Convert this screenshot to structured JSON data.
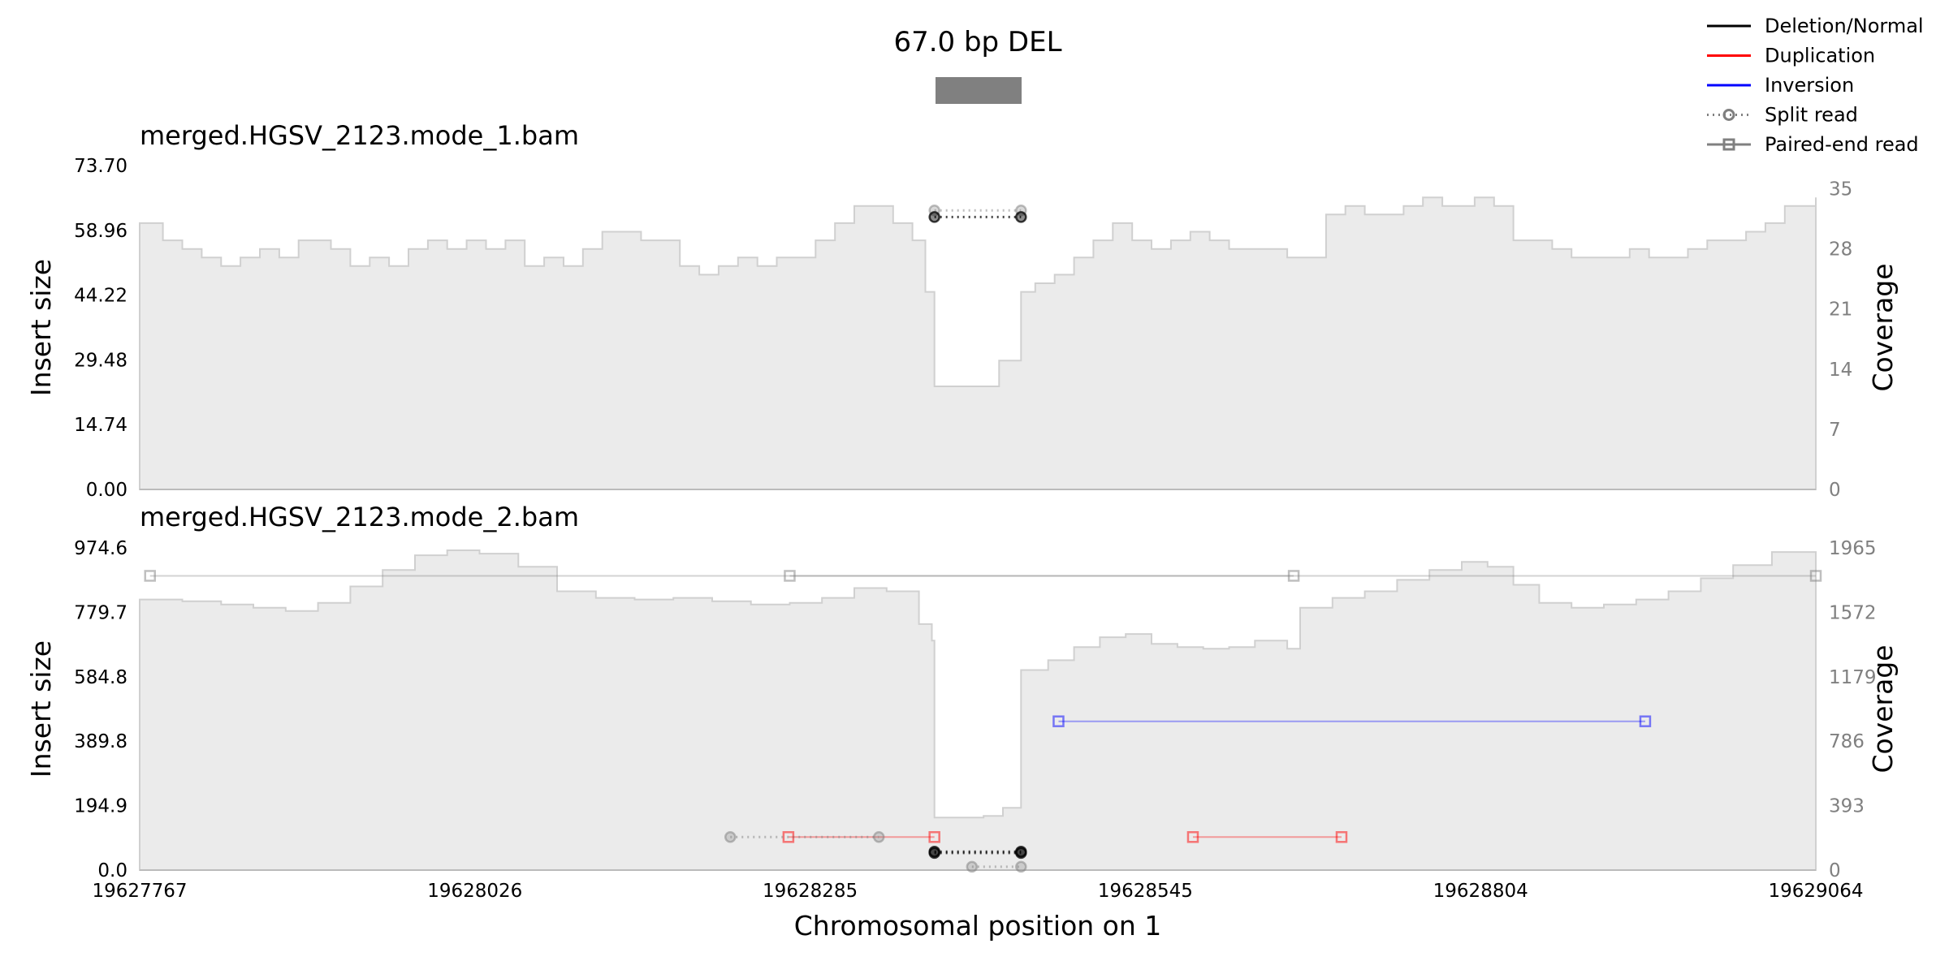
{
  "title": "67.0 bp DEL",
  "xlabel": "Chromosomal position on 1",
  "x_ticks": [
    "19627767",
    "19628026",
    "19628285",
    "19628545",
    "19628804",
    "19629064"
  ],
  "legend": [
    {
      "label": "Deletion/Normal",
      "color": "#000000",
      "style": "line"
    },
    {
      "label": "Duplication",
      "color": "#ff0000",
      "style": "line"
    },
    {
      "label": "Inversion",
      "color": "#0000ff",
      "style": "line"
    },
    {
      "label": "Split read",
      "color": "#808080",
      "style": "split"
    },
    {
      "label": "Paired-end read",
      "color": "#808080",
      "style": "paired"
    }
  ],
  "colors": {
    "coverage_fill": "#ebebeb",
    "coverage_line": "#d0d0d0",
    "deletion": "#000000",
    "duplication": "#ff0000",
    "inversion": "#0000ff",
    "neutral": "#808080",
    "sv_box": "#808080"
  },
  "chart_data": {
    "type": "area",
    "xlim": [
      19627767,
      19629064
    ],
    "variant": {
      "type": "DEL",
      "start": 19628382,
      "end": 19628449
    },
    "panels": [
      {
        "title": "merged.HGSV_2123.mode_1.bam",
        "ylabel": "Insert size",
        "y2label": "Coverage",
        "ylim": [
          0,
          73.7
        ],
        "yticks": [
          "73.70",
          "58.96",
          "44.22",
          "29.48",
          "14.74",
          "0.00"
        ],
        "y2lim": [
          0,
          37.7
        ],
        "y2ticks": [
          "35",
          "28",
          "21",
          "14",
          "7",
          "0"
        ],
        "coverage": [
          [
            19627767,
            31
          ],
          [
            19627785,
            29
          ],
          [
            19627800,
            28
          ],
          [
            19627815,
            27
          ],
          [
            19627830,
            26
          ],
          [
            19627845,
            27
          ],
          [
            19627860,
            28
          ],
          [
            19627875,
            27
          ],
          [
            19627890,
            29
          ],
          [
            19627900,
            29
          ],
          [
            19627915,
            28
          ],
          [
            19627930,
            26
          ],
          [
            19627945,
            27
          ],
          [
            19627960,
            26
          ],
          [
            19627975,
            28
          ],
          [
            19627990,
            29
          ],
          [
            19628005,
            28
          ],
          [
            19628020,
            29
          ],
          [
            19628035,
            28
          ],
          [
            19628050,
            29
          ],
          [
            19628065,
            26
          ],
          [
            19628080,
            27
          ],
          [
            19628095,
            26
          ],
          [
            19628110,
            28
          ],
          [
            19628125,
            30
          ],
          [
            19628140,
            30
          ],
          [
            19628155,
            29
          ],
          [
            19628170,
            29
          ],
          [
            19628185,
            26
          ],
          [
            19628200,
            25
          ],
          [
            19628215,
            26
          ],
          [
            19628230,
            27
          ],
          [
            19628245,
            26
          ],
          [
            19628260,
            27
          ],
          [
            19628275,
            27
          ],
          [
            19628290,
            29
          ],
          [
            19628305,
            31
          ],
          [
            19628320,
            33
          ],
          [
            19628335,
            33
          ],
          [
            19628350,
            31
          ],
          [
            19628365,
            29
          ],
          [
            19628375,
            23
          ],
          [
            19628382,
            12
          ],
          [
            19628395,
            12
          ],
          [
            19628405,
            12
          ],
          [
            19628420,
            12
          ],
          [
            19628432,
            15
          ],
          [
            19628449,
            23
          ],
          [
            19628460,
            24
          ],
          [
            19628475,
            25
          ],
          [
            19628490,
            27
          ],
          [
            19628505,
            29
          ],
          [
            19628520,
            31
          ],
          [
            19628535,
            29
          ],
          [
            19628550,
            28
          ],
          [
            19628565,
            29
          ],
          [
            19628580,
            30
          ],
          [
            19628595,
            29
          ],
          [
            19628610,
            28
          ],
          [
            19628625,
            28
          ],
          [
            19628640,
            28
          ],
          [
            19628655,
            27
          ],
          [
            19628670,
            27
          ],
          [
            19628685,
            32
          ],
          [
            19628700,
            33
          ],
          [
            19628715,
            32
          ],
          [
            19628730,
            32
          ],
          [
            19628745,
            33
          ],
          [
            19628760,
            34
          ],
          [
            19628775,
            33
          ],
          [
            19628790,
            33
          ],
          [
            19628800,
            34
          ],
          [
            19628815,
            33
          ],
          [
            19628830,
            29
          ],
          [
            19628845,
            29
          ],
          [
            19628860,
            28
          ],
          [
            19628875,
            27
          ],
          [
            19628890,
            27
          ],
          [
            19628905,
            27
          ],
          [
            19628920,
            28
          ],
          [
            19628935,
            27
          ],
          [
            19628950,
            27
          ],
          [
            19628965,
            28
          ],
          [
            19628980,
            29
          ],
          [
            19628995,
            29
          ],
          [
            19629010,
            30
          ],
          [
            19629025,
            31
          ],
          [
            19629040,
            33
          ],
          [
            19629064,
            34
          ]
        ],
        "split_reads": [
          {
            "start": 19628382,
            "end": 19628449,
            "insert": 63.5,
            "color": "#808080"
          },
          {
            "start": 19628382,
            "end": 19628449,
            "insert": 62.0,
            "color": "#000000"
          }
        ],
        "paired_reads": []
      },
      {
        "title": "merged.HGSV_2123.mode_2.bam",
        "ylabel": "Insert size",
        "y2label": "Coverage",
        "ylim": [
          0,
          974.6
        ],
        "yticks": [
          "974.6",
          "779.7",
          "584.8",
          "389.8",
          "194.9",
          "0.0"
        ],
        "y2lim": [
          0,
          1965
        ],
        "y2ticks": [
          "1965",
          "1572",
          "1179",
          "786",
          "393",
          "0"
        ],
        "coverage": [
          [
            19627767,
            1650
          ],
          [
            19627800,
            1640
          ],
          [
            19627830,
            1620
          ],
          [
            19627855,
            1600
          ],
          [
            19627880,
            1580
          ],
          [
            19627905,
            1630
          ],
          [
            19627930,
            1730
          ],
          [
            19627955,
            1830
          ],
          [
            19627980,
            1920
          ],
          [
            19628005,
            1950
          ],
          [
            19628030,
            1930
          ],
          [
            19628060,
            1850
          ],
          [
            19628090,
            1700
          ],
          [
            19628120,
            1660
          ],
          [
            19628150,
            1650
          ],
          [
            19628180,
            1660
          ],
          [
            19628210,
            1640
          ],
          [
            19628240,
            1620
          ],
          [
            19628270,
            1630
          ],
          [
            19628295,
            1660
          ],
          [
            19628320,
            1720
          ],
          [
            19628345,
            1700
          ],
          [
            19628370,
            1500
          ],
          [
            19628380,
            1400
          ],
          [
            19628382,
            320
          ],
          [
            19628400,
            320
          ],
          [
            19628420,
            330
          ],
          [
            19628435,
            380
          ],
          [
            19628449,
            1220
          ],
          [
            19628470,
            1280
          ],
          [
            19628490,
            1360
          ],
          [
            19628510,
            1420
          ],
          [
            19628530,
            1440
          ],
          [
            19628550,
            1380
          ],
          [
            19628570,
            1360
          ],
          [
            19628590,
            1350
          ],
          [
            19628610,
            1360
          ],
          [
            19628630,
            1400
          ],
          [
            19628655,
            1350
          ],
          [
            19628665,
            1600
          ],
          [
            19628690,
            1660
          ],
          [
            19628715,
            1700
          ],
          [
            19628740,
            1770
          ],
          [
            19628765,
            1830
          ],
          [
            19628790,
            1880
          ],
          [
            19628810,
            1850
          ],
          [
            19628830,
            1740
          ],
          [
            19628850,
            1630
          ],
          [
            19628875,
            1600
          ],
          [
            19628900,
            1620
          ],
          [
            19628925,
            1650
          ],
          [
            19628950,
            1700
          ],
          [
            19628975,
            1780
          ],
          [
            19629000,
            1860
          ],
          [
            19629030,
            1940
          ],
          [
            19629064,
            1920
          ]
        ],
        "split_reads": [
          {
            "start": 19628224,
            "end": 19628339,
            "insert": 100,
            "color": "#808080"
          },
          {
            "start": 19628382,
            "end": 19628449,
            "insert": 56,
            "color": "#000000"
          },
          {
            "start": 19628382,
            "end": 19628449,
            "insert": 52,
            "color": "#000000"
          },
          {
            "start": 19628411,
            "end": 19628449,
            "insert": 10,
            "color": "#808080"
          }
        ],
        "paired_reads": [
          {
            "start": 19627775,
            "end": 19629064,
            "insert": 890,
            "color": "#808080"
          },
          {
            "start": 19628270,
            "end": 19628660,
            "insert": 890,
            "color": "#808080"
          },
          {
            "start": 19628478,
            "end": 19628932,
            "insert": 450,
            "color": "#0000ff"
          },
          {
            "start": 19628269,
            "end": 19628382,
            "insert": 100,
            "color": "#ff0000"
          },
          {
            "start": 19628582,
            "end": 19628697,
            "insert": 100,
            "color": "#ff0000"
          }
        ]
      }
    ]
  }
}
